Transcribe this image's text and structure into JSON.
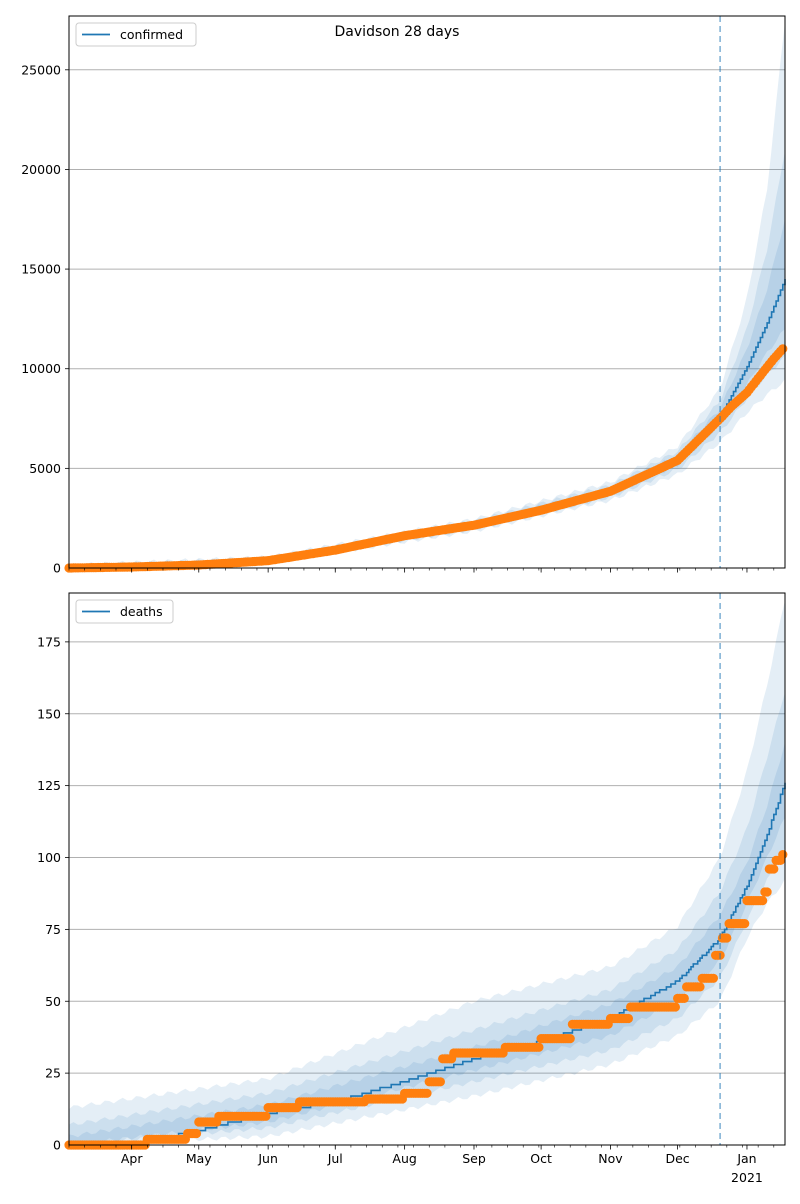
{
  "suptitle": "Davidson 28 days",
  "colors": {
    "model_line": "#1f77b4",
    "observed": "#ff7f0e",
    "band": "#1f77b4",
    "forecast_start": "#1f77b4",
    "grid": "#b0b0b0"
  },
  "x_axis": {
    "domain": [
      "2020-03-04",
      "2021-01-18"
    ],
    "month_ticks": [
      {
        "date": "2020-04-01",
        "label": "Apr"
      },
      {
        "date": "2020-05-01",
        "label": "May"
      },
      {
        "date": "2020-06-01",
        "label": "Jun"
      },
      {
        "date": "2020-07-01",
        "label": "Jul"
      },
      {
        "date": "2020-08-01",
        "label": "Aug"
      },
      {
        "date": "2020-09-01",
        "label": "Sep"
      },
      {
        "date": "2020-10-01",
        "label": "Oct"
      },
      {
        "date": "2020-11-01",
        "label": "Nov"
      },
      {
        "date": "2020-12-01",
        "label": "Dec"
      },
      {
        "date": "2021-01-01",
        "label": "Jan",
        "year_label": "2021"
      }
    ]
  },
  "forecast_start": "2020-12-20",
  "chart_data": [
    {
      "type": "line",
      "legend": "confirmed",
      "legend_position": "upper-left",
      "grid": "horizontal",
      "ylim": [
        0,
        27700
      ],
      "y_ticks": [
        0,
        5000,
        10000,
        15000,
        20000,
        25000
      ],
      "model_series": [
        {
          "x": "2020-03-04",
          "y": 0
        },
        {
          "x": "2020-04-01",
          "y": 60
        },
        {
          "x": "2020-05-01",
          "y": 150
        },
        {
          "x": "2020-06-01",
          "y": 380
        },
        {
          "x": "2020-07-01",
          "y": 900
        },
        {
          "x": "2020-08-01",
          "y": 1600
        },
        {
          "x": "2020-09-01",
          "y": 2150
        },
        {
          "x": "2020-10-01",
          "y": 2900
        },
        {
          "x": "2020-11-01",
          "y": 3850
        },
        {
          "x": "2020-12-01",
          "y": 5400
        },
        {
          "x": "2020-12-20",
          "y": 7600
        },
        {
          "x": "2021-01-01",
          "y": 10100
        },
        {
          "x": "2021-01-10",
          "y": 12300
        },
        {
          "x": "2021-01-18",
          "y": 14500
        }
      ],
      "bands": [
        {
          "x": [
            "2020-03-04",
            "2020-06-01",
            "2020-09-01",
            "2020-11-01",
            "2020-12-01",
            "2020-12-20",
            "2021-01-01",
            "2021-01-10",
            "2021-01-18"
          ],
          "lower": [
            0,
            250,
            1850,
            3400,
            4700,
            6300,
            7800,
            8700,
            9400
          ],
          "upper": [
            150,
            550,
            2450,
            4300,
            6100,
            9000,
            13500,
            19000,
            27500
          ]
        },
        {
          "x": [
            "2020-03-04",
            "2020-06-01",
            "2020-09-01",
            "2020-11-01",
            "2020-12-01",
            "2020-12-20",
            "2021-01-01",
            "2021-01-10",
            "2021-01-18"
          ],
          "lower": [
            0,
            300,
            1950,
            3550,
            4950,
            6800,
            8500,
            9700,
            10600
          ],
          "upper": [
            100,
            480,
            2350,
            4150,
            5850,
            8400,
            12000,
            16000,
            21000
          ]
        },
        {
          "x": [
            "2020-03-04",
            "2020-06-01",
            "2020-09-01",
            "2020-11-01",
            "2020-12-01",
            "2020-12-20",
            "2021-01-01",
            "2021-01-10",
            "2021-01-18"
          ],
          "lower": [
            0,
            340,
            2050,
            3700,
            5150,
            7200,
            9200,
            10800,
            12000
          ],
          "upper": [
            60,
            430,
            2250,
            4000,
            5650,
            8000,
            11000,
            14000,
            17500
          ]
        }
      ],
      "observed": [
        {
          "x": "2020-03-04",
          "y": 0
        },
        {
          "x": "2020-04-01",
          "y": 50
        },
        {
          "x": "2020-05-01",
          "y": 150
        },
        {
          "x": "2020-06-01",
          "y": 370
        },
        {
          "x": "2020-07-01",
          "y": 900
        },
        {
          "x": "2020-08-01",
          "y": 1620
        },
        {
          "x": "2020-09-01",
          "y": 2150
        },
        {
          "x": "2020-10-01",
          "y": 2900
        },
        {
          "x": "2020-11-01",
          "y": 3850
        },
        {
          "x": "2020-12-01",
          "y": 5400
        },
        {
          "x": "2020-12-20",
          "y": 7500
        },
        {
          "x": "2020-12-25",
          "y": 8100
        },
        {
          "x": "2021-01-01",
          "y": 8800
        },
        {
          "x": "2021-01-08",
          "y": 9800
        },
        {
          "x": "2021-01-13",
          "y": 10500
        },
        {
          "x": "2021-01-17",
          "y": 11000
        }
      ]
    },
    {
      "type": "line",
      "legend": "deaths",
      "legend_position": "upper-left",
      "grid": "horizontal",
      "ylim": [
        0,
        192
      ],
      "y_ticks": [
        0,
        25,
        50,
        75,
        100,
        125,
        150,
        175
      ],
      "model_series": [
        {
          "x": "2020-03-04",
          "y": 0
        },
        {
          "x": "2020-04-01",
          "y": 0
        },
        {
          "x": "2020-05-01",
          "y": 5
        },
        {
          "x": "2020-06-01",
          "y": 11
        },
        {
          "x": "2020-07-01",
          "y": 15
        },
        {
          "x": "2020-08-01",
          "y": 22
        },
        {
          "x": "2020-09-01",
          "y": 30
        },
        {
          "x": "2020-10-01",
          "y": 36
        },
        {
          "x": "2020-11-01",
          "y": 44
        },
        {
          "x": "2020-12-01",
          "y": 57
        },
        {
          "x": "2020-12-20",
          "y": 72
        },
        {
          "x": "2021-01-01",
          "y": 90
        },
        {
          "x": "2021-01-10",
          "y": 108
        },
        {
          "x": "2021-01-18",
          "y": 126
        }
      ],
      "bands": [
        {
          "x": [
            "2020-03-04",
            "2020-06-01",
            "2020-09-01",
            "2020-11-01",
            "2020-12-01",
            "2020-12-20",
            "2021-01-01",
            "2021-01-10",
            "2021-01-18"
          ],
          "lower": [
            0,
            3,
            17,
            28,
            38,
            50,
            72,
            84,
            92
          ],
          "upper": [
            13,
            23,
            50,
            62,
            76,
            100,
            130,
            160,
            190
          ]
        },
        {
          "x": [
            "2020-03-04",
            "2020-06-01",
            "2020-09-01",
            "2020-11-01",
            "2020-12-01",
            "2020-12-20",
            "2021-01-01",
            "2021-01-10",
            "2021-01-18"
          ],
          "lower": [
            0,
            6,
            22,
            33,
            44,
            58,
            78,
            92,
            103
          ],
          "upper": [
            7,
            18,
            40,
            54,
            68,
            88,
            110,
            135,
            158
          ]
        },
        {
          "x": [
            "2020-03-04",
            "2020-06-01",
            "2020-09-01",
            "2020-11-01",
            "2020-12-01",
            "2020-12-20",
            "2021-01-01",
            "2021-01-10",
            "2021-01-18"
          ],
          "lower": [
            0,
            8,
            26,
            38,
            50,
            64,
            84,
            100,
            114
          ],
          "upper": [
            3,
            14,
            34,
            49,
            62,
            80,
            98,
            118,
            140
          ]
        }
      ],
      "observed": [
        {
          "x": "2020-03-04",
          "y": 0
        },
        {
          "x": "2020-04-01",
          "y": 0
        },
        {
          "x": "2020-04-08",
          "y": 2
        },
        {
          "x": "2020-04-26",
          "y": 4
        },
        {
          "x": "2020-05-01",
          "y": 8
        },
        {
          "x": "2020-05-10",
          "y": 10
        },
        {
          "x": "2020-06-01",
          "y": 13
        },
        {
          "x": "2020-06-15",
          "y": 15
        },
        {
          "x": "2020-07-15",
          "y": 16
        },
        {
          "x": "2020-08-01",
          "y": 18
        },
        {
          "x": "2020-08-12",
          "y": 22
        },
        {
          "x": "2020-08-18",
          "y": 30
        },
        {
          "x": "2020-08-23",
          "y": 32
        },
        {
          "x": "2020-09-15",
          "y": 34
        },
        {
          "x": "2020-10-01",
          "y": 37
        },
        {
          "x": "2020-10-15",
          "y": 42
        },
        {
          "x": "2020-11-01",
          "y": 44
        },
        {
          "x": "2020-11-10",
          "y": 48
        },
        {
          "x": "2020-12-01",
          "y": 51
        },
        {
          "x": "2020-12-05",
          "y": 55
        },
        {
          "x": "2020-12-12",
          "y": 58
        },
        {
          "x": "2020-12-18",
          "y": 66
        },
        {
          "x": "2020-12-21",
          "y": 72
        },
        {
          "x": "2020-12-24",
          "y": 77
        },
        {
          "x": "2021-01-01",
          "y": 85
        },
        {
          "x": "2021-01-09",
          "y": 88
        },
        {
          "x": "2021-01-11",
          "y": 96
        },
        {
          "x": "2021-01-14",
          "y": 99
        },
        {
          "x": "2021-01-17",
          "y": 101
        }
      ]
    }
  ]
}
